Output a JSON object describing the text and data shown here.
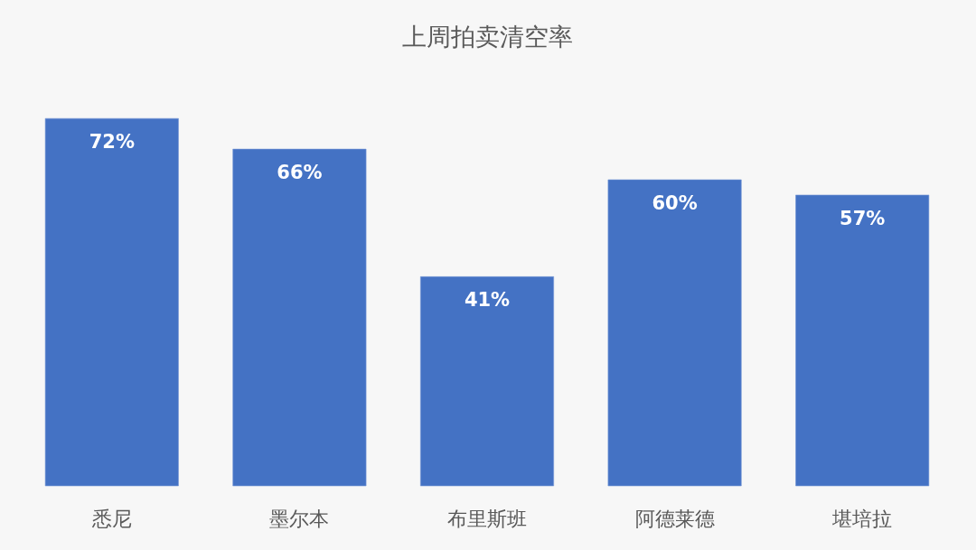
{
  "chart_data": {
    "type": "bar",
    "title": "上周拍卖清空率",
    "categories": [
      "悉尼",
      "墨尔本",
      "布里斯班",
      "阿德莱德",
      "堪培拉"
    ],
    "values": [
      72,
      66,
      41,
      60,
      57
    ],
    "color": "#4472c4",
    "value_labels": [
      "72%",
      "66%",
      "41%",
      "60%",
      "57%"
    ],
    "tick_labels": "x"
  }
}
